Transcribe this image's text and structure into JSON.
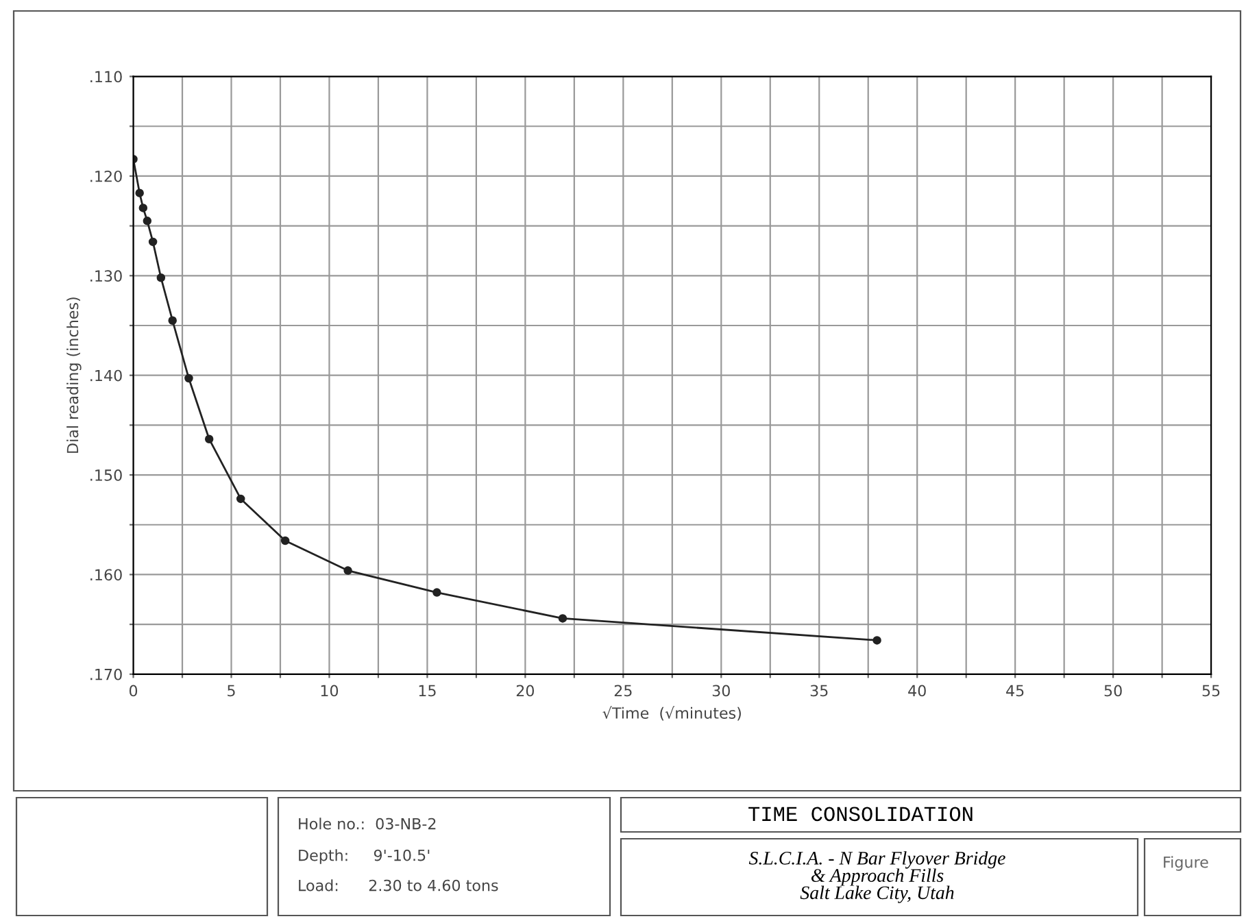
{
  "chart_data": {
    "type": "line",
    "title": "TIME CONSOLIDATION",
    "xlabel": "√Time  (√minutes)",
    "ylabel": "Dial reading (inches)",
    "x": [
      0,
      0.32,
      0.5,
      0.71,
      1,
      1.41,
      2,
      2.83,
      3.87,
      5.48,
      7.75,
      10.95,
      15.49,
      21.91,
      37.95
    ],
    "series": [
      {
        "color": "#222222",
        "values": [
          0.1183,
          0.1217,
          0.1232,
          0.1245,
          0.1266,
          0.1302,
          0.1345,
          0.1403,
          0.1464,
          0.1524,
          0.1566,
          0.1596,
          0.1618,
          0.1644,
          0.1666
        ]
      }
    ],
    "marker": "circle",
    "line_style": "solid",
    "grid": true,
    "xlim": [
      0,
      55
    ],
    "xticks": [
      0,
      {
        "value": 2.5,
        "label": null
      },
      5,
      {
        "value": 7.5,
        "label": null
      },
      10,
      {
        "value": 12.5,
        "label": null
      },
      15,
      {
        "value": 17.5,
        "label": null
      },
      20,
      {
        "value": 22.5,
        "label": null
      },
      25,
      {
        "value": 27.5,
        "label": null
      },
      30,
      {
        "value": 32.5,
        "label": null
      },
      35,
      {
        "value": 37.5,
        "label": null
      },
      40,
      {
        "value": 42.5,
        "label": null
      },
      45,
      {
        "value": 47.5,
        "label": null
      },
      50,
      {
        "value": 52.5,
        "label": null
      },
      55
    ],
    "ylim": [
      0.17,
      0.11
    ],
    "yticks": [
      {
        "value": 0.11,
        "label": ".110"
      },
      {
        "value": 0.115,
        "label": null
      },
      {
        "value": 0.12,
        "label": ".120"
      },
      {
        "value": 0.125,
        "label": null
      },
      {
        "value": 0.13,
        "label": ".130"
      },
      {
        "value": 0.135,
        "label": null
      },
      {
        "value": 0.14,
        "label": ".140"
      },
      {
        "value": 0.145,
        "label": null
      },
      {
        "value": 0.15,
        "label": ".150"
      },
      {
        "value": 0.155,
        "label": null
      },
      {
        "value": 0.16,
        "label": ".160"
      },
      {
        "value": 0.165,
        "label": null
      },
      {
        "value": 0.17,
        "label": ".170"
      }
    ],
    "annotations": [
      "Hole no.:  03-NB-2",
      "Depth:     9'-10.5'",
      "Load:      2.30 to 4.60 tons",
      "S.L.C.I.A. - N Bar Flyover Bridge\n& Approach Fills\nSalt Lake City, Utah",
      "Figure"
    ]
  }
}
